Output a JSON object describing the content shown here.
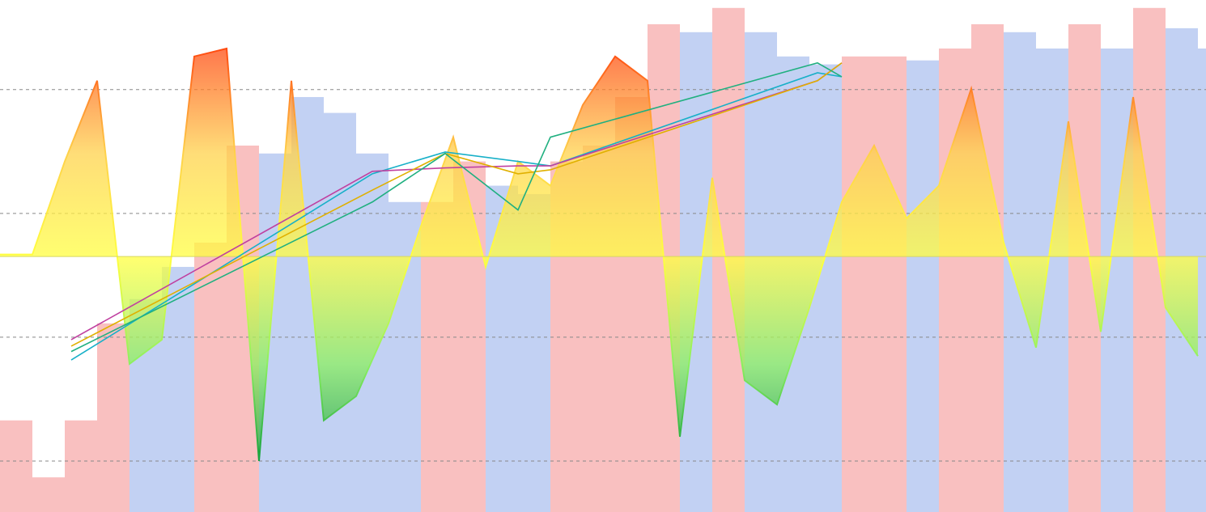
{
  "chart_data": [
    {
      "type": "bar",
      "x": [
        0,
        40,
        80,
        120,
        160,
        200,
        240,
        280,
        320,
        360,
        400,
        440,
        480,
        520,
        560,
        600,
        640,
        680,
        720,
        760,
        800,
        840,
        880,
        920,
        960,
        1000,
        1040,
        1080,
        1120,
        1160,
        1200,
        1240,
        1280,
        1320,
        1360,
        1400,
        1440,
        1480
      ],
      "values": [
        8.2,
        -3.3,
        8.2,
        27.8,
        32.7,
        39.2,
        44.1,
        63.7,
        62.1,
        73.5,
        70.3,
        62.1,
        52.3,
        52.3,
        60.5,
        55.6,
        53.9,
        60.5,
        63.7,
        73.5,
        88.2,
        86.6,
        91.5,
        86.6,
        81.7,
        80.1,
        81.7,
        81.7,
        80.9,
        83.3,
        88.2,
        86.6,
        83.3,
        88.2,
        83.3,
        91.5,
        87.4,
        83.3
      ],
      "colors": [
        "#f7b0b0",
        "#f7b0b0",
        "#f7b0b0",
        "#f7b0b0",
        "#b3c6f0",
        "#b3c6f0",
        "#f7b0b0",
        "#f7b0b0",
        "#b3c6f0",
        "#b3c6f0",
        "#b3c6f0",
        "#b3c6f0",
        "#b3c6f0",
        "#f7b0b0",
        "#f7b0b0",
        "#b3c6f0",
        "#b3c6f0",
        "#f7b0b0",
        "#f7b0b0",
        "#f7b0b0",
        "#f7b0b0",
        "#b3c6f0",
        "#f7b0b0",
        "#b3c6f0",
        "#b3c6f0",
        "#b3c6f0",
        "#f7b0b0",
        "#f7b0b0",
        "#b3c6f0",
        "#f7b0b0",
        "#f7b0b0",
        "#b3c6f0",
        "#b3c6f0",
        "#f7b0b0",
        "#b3c6f0",
        "#f7b0b0",
        "#b3c6f0",
        "#b3c6f0"
      ],
      "xlim": [
        0,
        1490
      ],
      "ylim": [
        -10.3,
        93.1
      ],
      "yticks": [
        0,
        25,
        50,
        75
      ],
      "grid": true
    },
    {
      "type": "area",
      "x": [
        0,
        40,
        80,
        120,
        160,
        200,
        240,
        280,
        320,
        360,
        400,
        440,
        480,
        520,
        560,
        600,
        640,
        680,
        720,
        760,
        800,
        840,
        880,
        920,
        960,
        1000,
        1040,
        1080,
        1120,
        1160,
        1200,
        1240,
        1280,
        1320,
        1360,
        1400,
        1440,
        1480
      ],
      "values": [
        41.7,
        41.7,
        60.5,
        76.8,
        19.6,
        24.5,
        81.7,
        83.3,
        0,
        76.8,
        8.2,
        13.1,
        27.8,
        47.4,
        65.4,
        39.2,
        60.5,
        55.6,
        71.9,
        81.7,
        76.8,
        4.9,
        57.2,
        16.3,
        11.4,
        31.0,
        52.3,
        63.7,
        49.0,
        55.6,
        75.2,
        44.1,
        22.9,
        68.6,
        26.1,
        73.5,
        31.0,
        21.2
      ],
      "baseline": 41.3,
      "gradient": [
        "#ff4a10",
        "#ffd24a",
        "#ffff40",
        "#8cf060",
        "#0a9a3a"
      ],
      "xlim": [
        0,
        1490
      ],
      "ylim": [
        -10.3,
        93.1
      ]
    },
    {
      "type": "line",
      "x": [
        88,
        460,
        550,
        640,
        680,
        1010,
        1040
      ],
      "series": [
        {
          "color": "#17b0c8",
          "values": [
            20.4,
            58.0,
            62.4,
            60.5,
            59.6,
            78.4,
            77.6
          ]
        },
        {
          "color": "#c040a0",
          "values": [
            24.5,
            58.5,
            59.2,
            59.6,
            59.6,
            76.8,
            80.4
          ]
        },
        {
          "color": "#e0b000",
          "values": [
            23.2,
            54.7,
            62.1,
            58.0,
            58.8,
            76.8,
            80.4
          ]
        },
        {
          "color": "#20b080",
          "values": [
            22.1,
            52.3,
            62.1,
            50.7,
            65.4,
            80.4,
            77.6
          ]
        }
      ],
      "xlim": [
        0,
        1490
      ],
      "ylim": [
        -10.3,
        93.1
      ]
    }
  ]
}
